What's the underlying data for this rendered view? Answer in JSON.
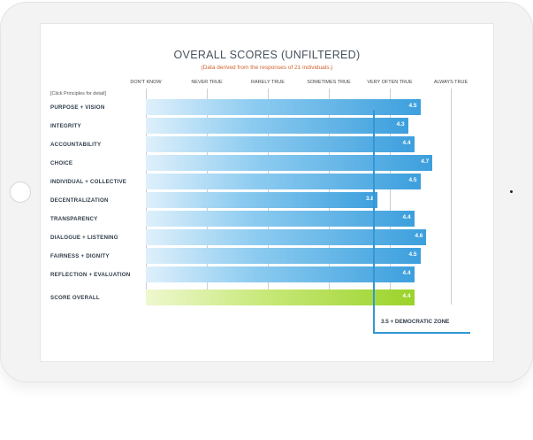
{
  "chart_data": {
    "type": "bar",
    "orientation": "horizontal",
    "title": "OVERALL SCORES (UNFILTERED)",
    "subtitle": "(Data derived from the responses of 21 individuals.)",
    "hint": "[Click Principles for detail]",
    "xlim": [
      0,
      5
    ],
    "ticks": [
      {
        "value": 0,
        "label": "DON'T KNOW"
      },
      {
        "value": 1,
        "label": "NEVER TRUE"
      },
      {
        "value": 2,
        "label": "RARELY TRUE"
      },
      {
        "value": 3,
        "label": "SOMETIMES TRUE"
      },
      {
        "value": 4,
        "label": "VERY OFTEN TRUE"
      },
      {
        "value": 5,
        "label": "ALWAYS TRUE"
      }
    ],
    "categories": [
      "PURPOSE + VISION",
      "INTEGRITY",
      "ACCOUNTABILITY",
      "CHOICE",
      "INDIVIDUAL + COLLECTIVE",
      "DECENTRALIZATION",
      "TRANSPARENCY",
      "DIALOGUE + LISTENING",
      "FAIRNESS + DIGNITY",
      "REFLECTION + EVALUATION",
      "SCORE OVERALL"
    ],
    "values": [
      4.5,
      4.3,
      4.4,
      4.7,
      4.5,
      3.8,
      4.4,
      4.6,
      4.5,
      4.4,
      4.4
    ],
    "value_labels": [
      "4.5",
      "4.3",
      "4.4",
      "4.7",
      "4.5",
      "3.8",
      "4.4",
      "4.6",
      "4.5",
      "4.4",
      "4.4"
    ],
    "reference_line": {
      "value": 3.5,
      "label": "3.5 + DEMOCRATIC ZONE"
    },
    "grid": true,
    "colors": {
      "bar": "#3c9fdd",
      "overall_bar": "#9bd32a",
      "reference_line": "#3397d4",
      "title": "#47525d",
      "subtitle": "#d0632f"
    }
  }
}
